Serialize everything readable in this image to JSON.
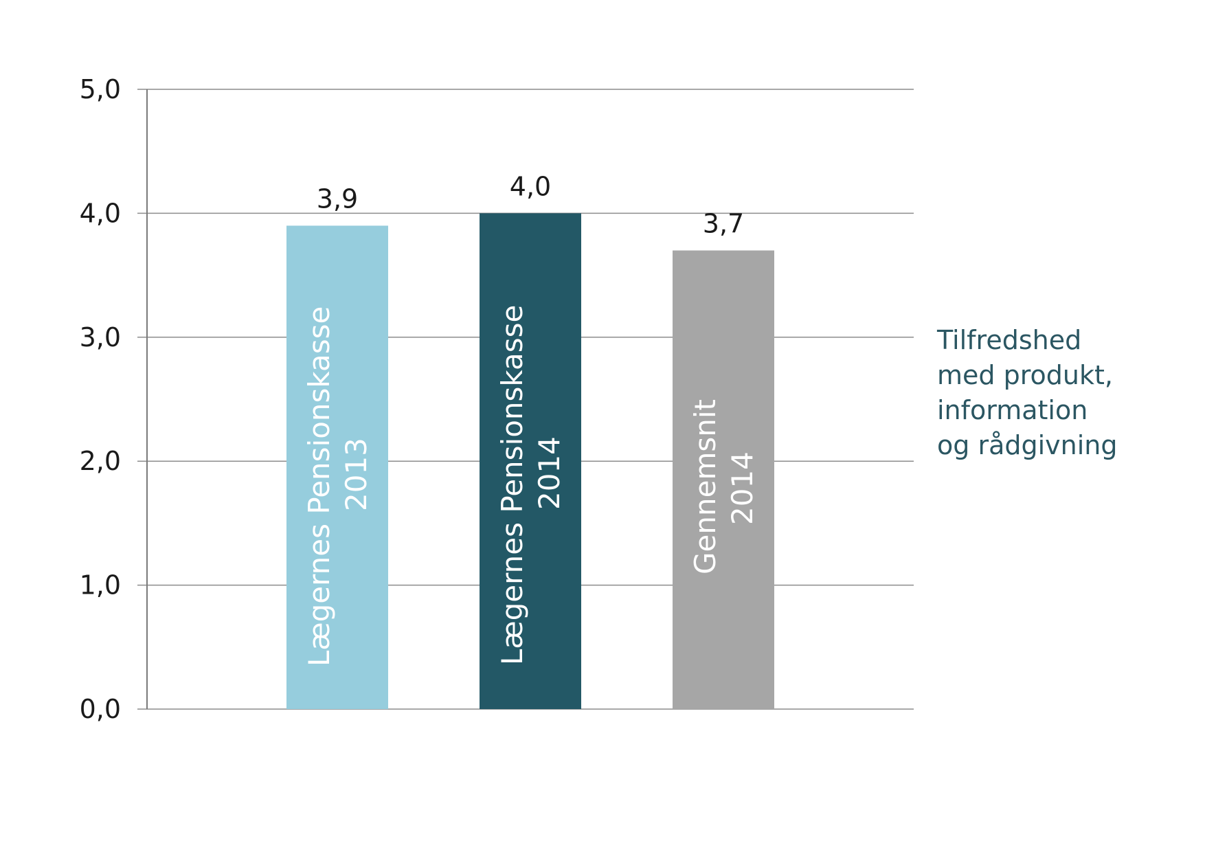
{
  "chart_data": {
    "type": "bar",
    "categories": [
      [
        "Lægernes Pensionskasse",
        "2013"
      ],
      [
        "Lægernes Pensionskasse",
        "2014"
      ],
      [
        "Gennemsnit",
        "2014"
      ]
    ],
    "values": [
      3.9,
      4.0,
      3.7
    ],
    "value_labels": [
      "3,9",
      "4,0",
      "3,7"
    ],
    "colors": [
      "#96cddd",
      "#235866",
      "#a6a6a6"
    ],
    "ylim": [
      0,
      5
    ],
    "yticks": [
      0,
      1,
      2,
      3,
      4,
      5
    ],
    "ytick_labels": [
      "0,0",
      "1,0",
      "2,0",
      "3,0",
      "4,0",
      "5,0"
    ],
    "grid": true,
    "legend": "none",
    "title": "",
    "xlabel": "",
    "ylabel": ""
  },
  "annotation": {
    "lines": [
      "Tilfredshed",
      "med produkt,",
      "information",
      "og rådgivning"
    ],
    "color": "#2b5662"
  }
}
